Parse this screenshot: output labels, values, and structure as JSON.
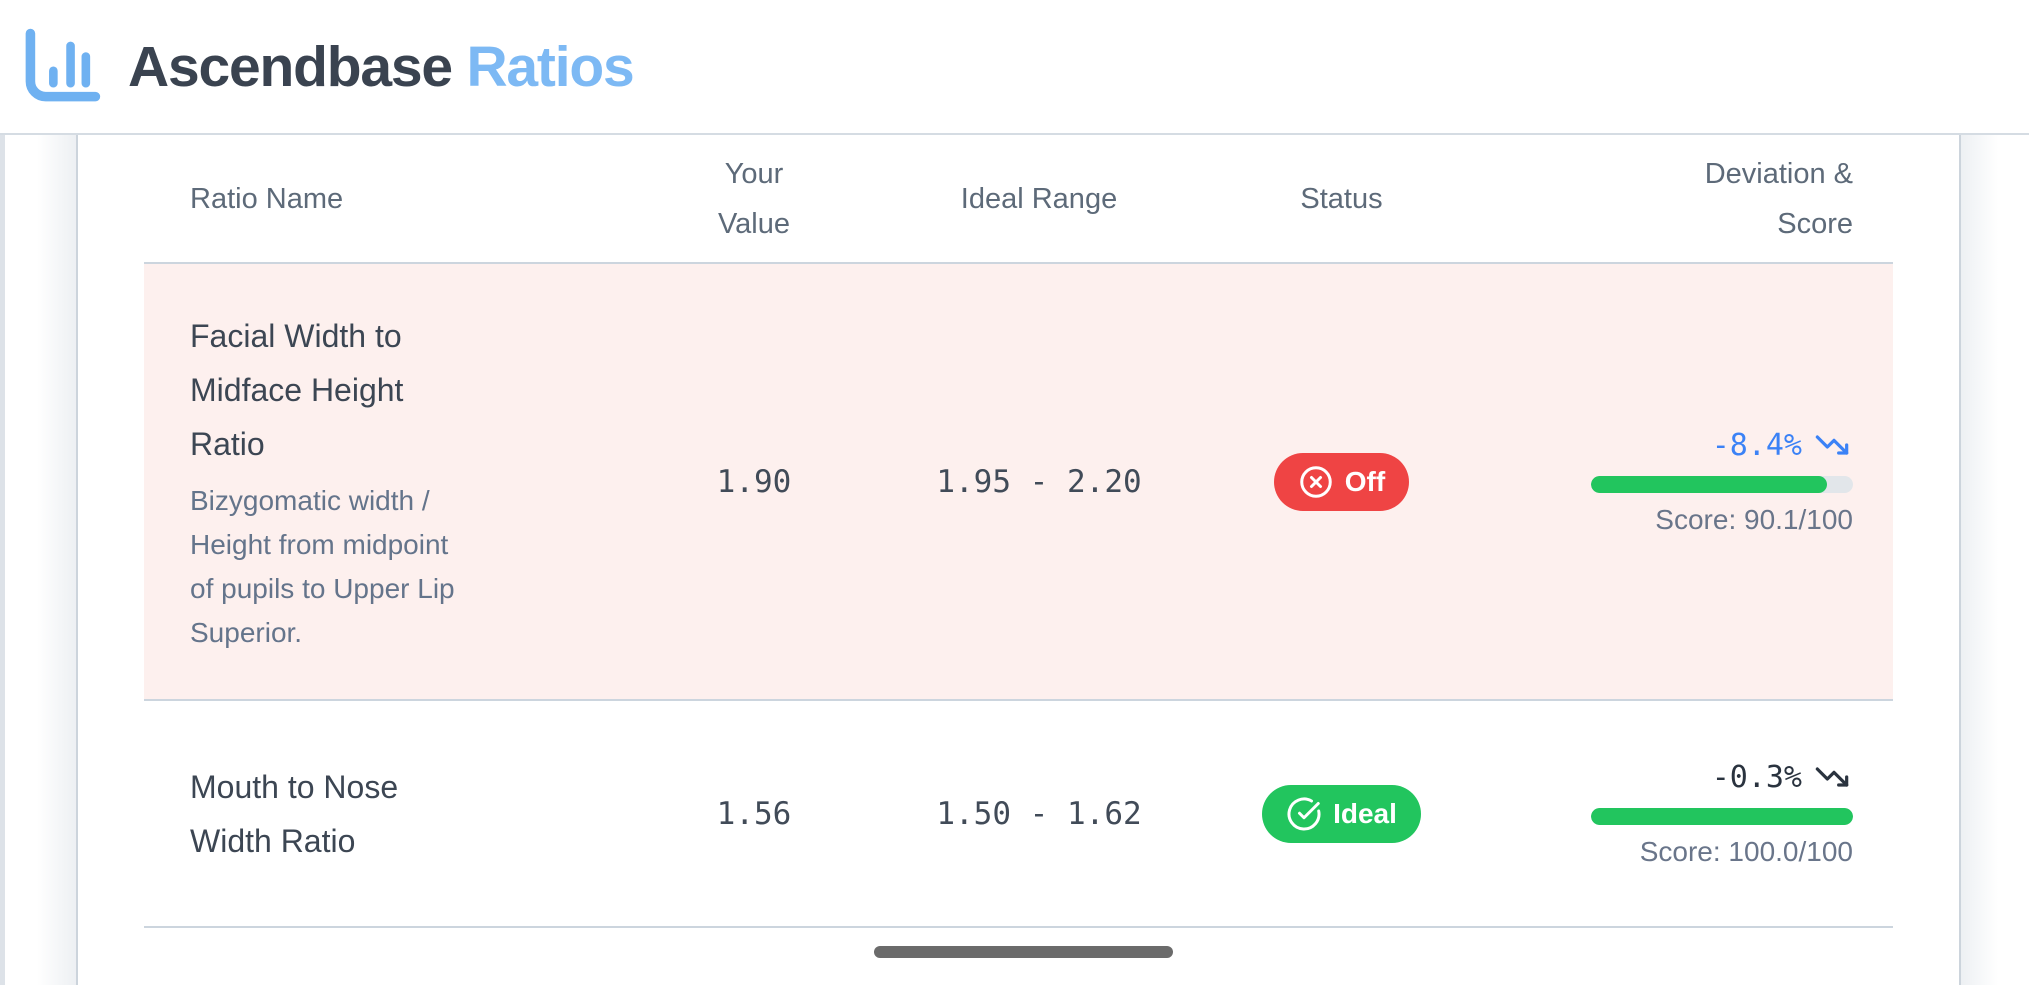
{
  "app": {
    "brand": "Ascendbase",
    "brand_accent": "Ratios"
  },
  "colors": {
    "brand_blue": "#7db9f4",
    "logo_icon_blue": "#6fb1f1",
    "accent_blue": "#3b82f6",
    "status_off_red": "#ef4444",
    "status_ideal_green": "#22c55e",
    "bar_green": "#22c55e",
    "row_highlight_pink": "#fdf0ee"
  },
  "table": {
    "columns": [
      "Ratio Name",
      "Your\nValue",
      "Ideal Range",
      "Status",
      "Deviation &\nScore"
    ],
    "rows": [
      {
        "name": "Facial Width to\nMidface Height\nRatio",
        "description": "Bizygomatic width /\nHeight from midpoint\nof pupils to Upper Lip\nSuperior.",
        "value": "1.90",
        "ideal_range": "1.95 - 2.20",
        "status": "Off",
        "deviation": "-8.4%",
        "score_label": "Score: 90.1/100",
        "score_pct": 90.1
      },
      {
        "name": "Mouth to Nose\nWidth Ratio",
        "description": "",
        "value": "1.56",
        "ideal_range": "1.50 - 1.62",
        "status": "Ideal",
        "deviation": "-0.3%",
        "score_label": "Score: 100.0/100",
        "score_pct": 100
      }
    ]
  }
}
